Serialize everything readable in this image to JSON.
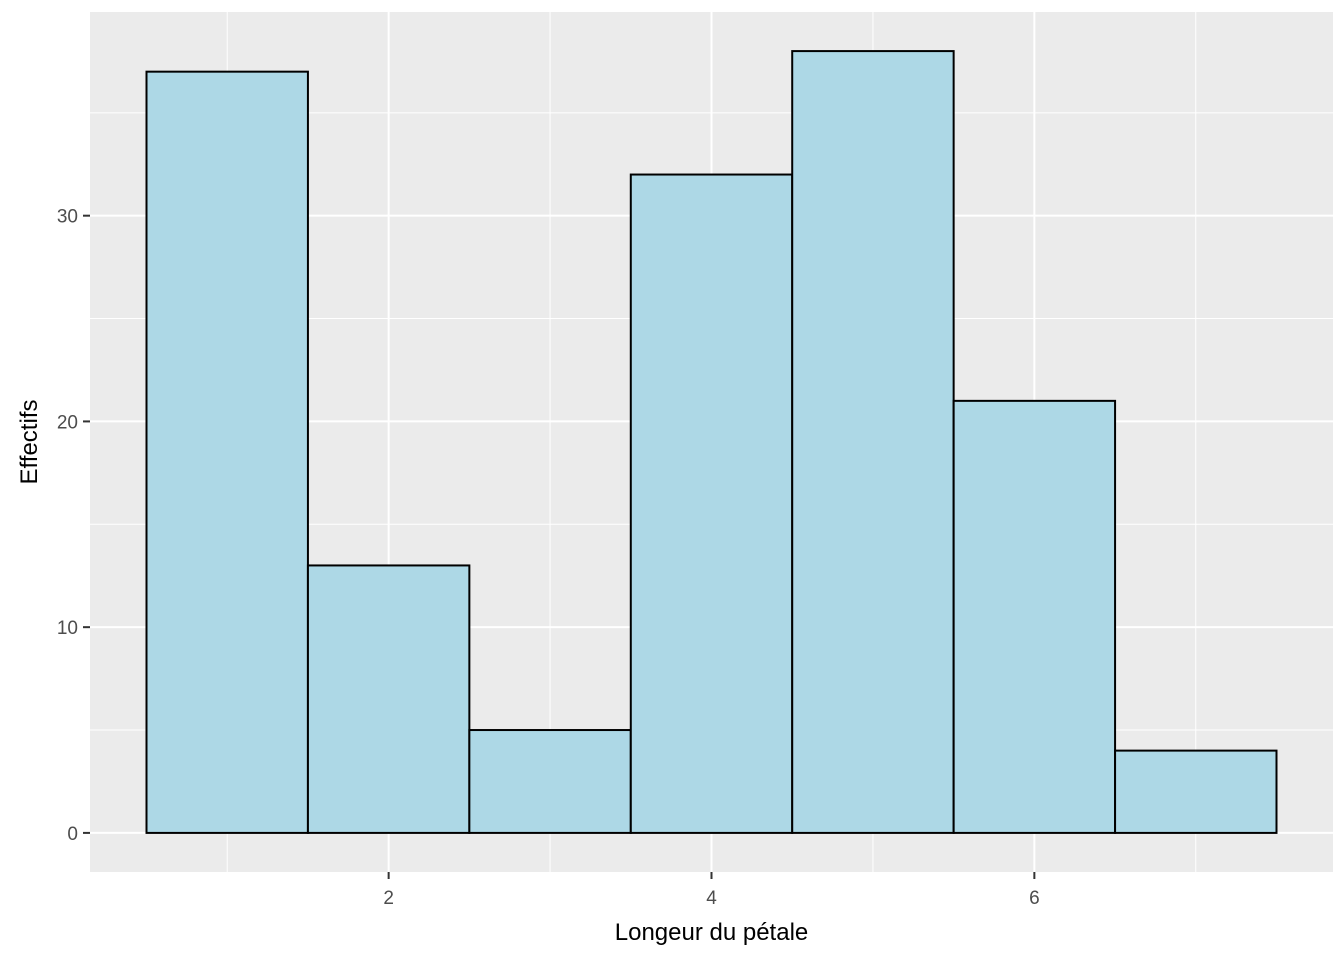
{
  "chart_data": {
    "type": "bar",
    "histogram": true,
    "bins": [
      {
        "x0": 0.5,
        "x1": 1.5,
        "count": 37
      },
      {
        "x0": 1.5,
        "x1": 2.5,
        "count": 13
      },
      {
        "x0": 2.5,
        "x1": 3.5,
        "count": 5
      },
      {
        "x0": 3.5,
        "x1": 4.5,
        "count": 32
      },
      {
        "x0": 4.5,
        "x1": 5.5,
        "count": 38
      },
      {
        "x0": 5.5,
        "x1": 6.5,
        "count": 21
      },
      {
        "x0": 6.5,
        "x1": 7.5,
        "count": 4
      }
    ],
    "title": "",
    "xlabel": "Longeur du pétale",
    "ylabel": "Effectifs",
    "xlim": [
      0.15,
      7.85
    ],
    "ylim": [
      -1.9,
      39.9
    ],
    "x_ticks": [
      2,
      4,
      6
    ],
    "x_tick_labels": [
      "2",
      "4",
      "6"
    ],
    "x_minor_ticks": [
      1,
      3,
      5,
      7
    ],
    "y_ticks": [
      0,
      10,
      20,
      30
    ],
    "y_tick_labels": [
      "0",
      "10",
      "20",
      "30"
    ],
    "y_minor_ticks": [
      5,
      15,
      25,
      35
    ],
    "grid": true,
    "legend": "none",
    "colors": {
      "bar_fill": "#add8e6",
      "bar_stroke": "#000000",
      "panel_background": "#ebebeb",
      "grid": "#ffffff"
    }
  }
}
